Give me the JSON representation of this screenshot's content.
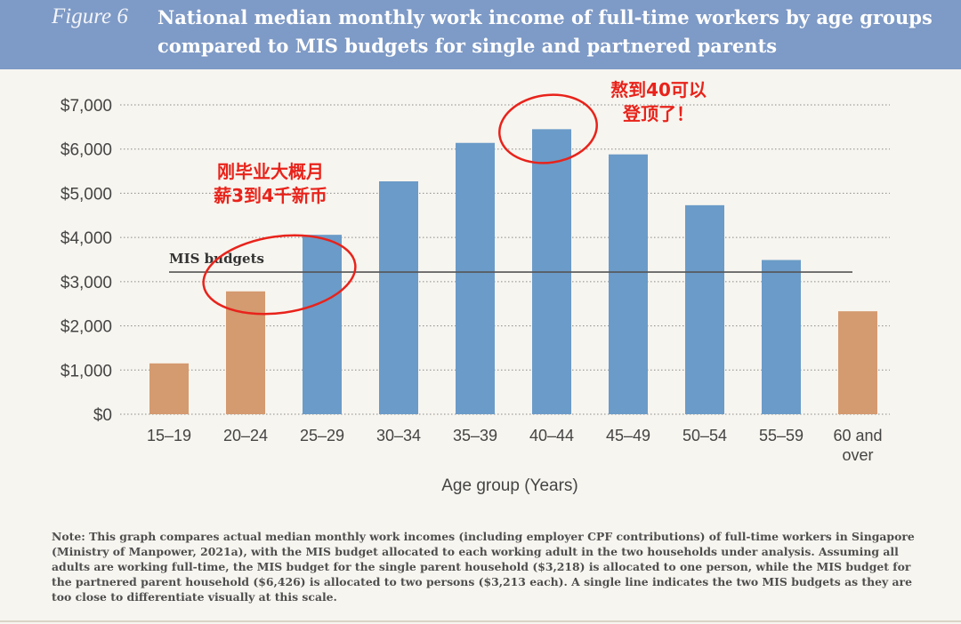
{
  "figure": {
    "label": "Figure 6",
    "title": "National median monthly work income of full-time workers by age groups compared to MIS budgets for single and partnered parents"
  },
  "chart_data": {
    "type": "bar",
    "categories": [
      "15–19",
      "20–24",
      "25–29",
      "30–34",
      "35–39",
      "40–44",
      "45–49",
      "50–54",
      "55–59",
      "60 and over"
    ],
    "values": [
      1150,
      2780,
      4060,
      5270,
      6140,
      6450,
      5880,
      4730,
      3490,
      2330
    ],
    "highlight": [
      true,
      true,
      false,
      false,
      false,
      false,
      false,
      false,
      false,
      true
    ],
    "xlabel": "Age group (Years)",
    "ylabel": "",
    "ylim": [
      0,
      7000
    ],
    "yticks": [
      "$0",
      "$1,000",
      "$2,000",
      "$3,000",
      "$4,000",
      "$5,000",
      "$6,000",
      "$7,000"
    ],
    "grid": true,
    "reference_line": {
      "label": "MIS budgets",
      "value": 3218
    },
    "colors": {
      "main": "#6b9bc8",
      "highlight": "#d49a70",
      "reference": "#555555",
      "annotation": "#e8231b"
    },
    "annotations": [
      {
        "lines": [
          "刚毕业大概月",
          "薪3到4千新币"
        ],
        "target": "25–29"
      },
      {
        "lines": [
          "熬到40可以",
          "登顶了！"
        ],
        "target": "40–44"
      }
    ]
  },
  "note": "Note: This graph compares actual median monthly work incomes (including employer CPF contributions) of full-time workers in Singapore (Ministry of Manpower, 2021a), with the MIS budget allocated to each working adult in the two households under analysis. Assuming all adults are working full-time, the MIS budget for the single parent household ($3,218) is allocated to one person, while the MIS budget for the partnered parent household ($6,426) is allocated to two persons ($3,213 each). A single line indicates the two MIS budgets as they are too close to differentiate visually at this scale."
}
